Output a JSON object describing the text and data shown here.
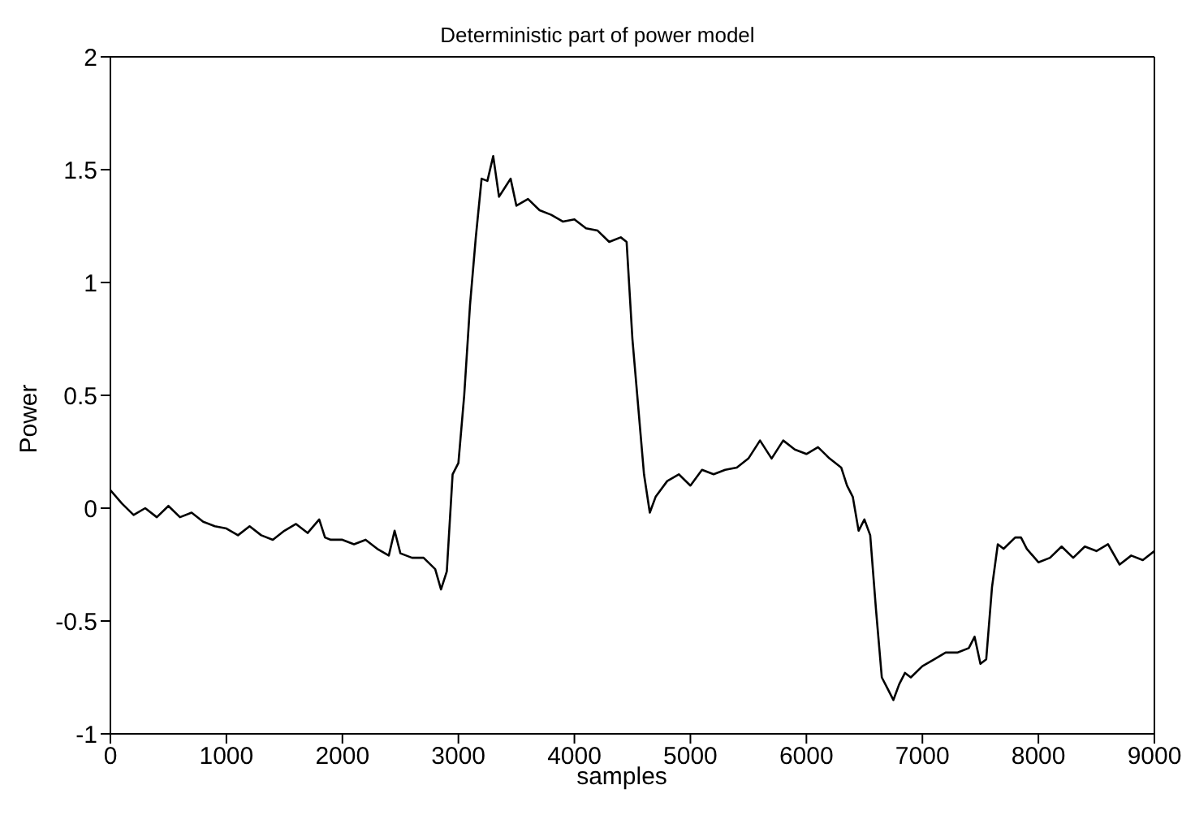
{
  "chart_data": {
    "type": "line",
    "title": "Deterministic part of power model",
    "xlabel": "samples",
    "ylabel": "Power",
    "x": [
      0,
      100,
      200,
      300,
      400,
      500,
      600,
      700,
      800,
      900,
      1000,
      1100,
      1200,
      1300,
      1400,
      1500,
      1600,
      1700,
      1800,
      1850,
      1900,
      2000,
      2100,
      2200,
      2300,
      2400,
      2450,
      2500,
      2600,
      2700,
      2800,
      2850,
      2900,
      2950,
      3000,
      3050,
      3100,
      3150,
      3200,
      3250,
      3300,
      3350,
      3400,
      3450,
      3500,
      3600,
      3700,
      3800,
      3900,
      4000,
      4100,
      4200,
      4300,
      4400,
      4450,
      4500,
      4550,
      4600,
      4650,
      4700,
      4800,
      4900,
      5000,
      5100,
      5200,
      5300,
      5400,
      5500,
      5600,
      5700,
      5800,
      5900,
      6000,
      6100,
      6200,
      6300,
      6350,
      6400,
      6450,
      6500,
      6550,
      6600,
      6650,
      6700,
      6750,
      6800,
      6850,
      6900,
      7000,
      7100,
      7200,
      7300,
      7400,
      7450,
      7500,
      7550,
      7600,
      7650,
      7700,
      7800,
      7850,
      7900,
      8000,
      8100,
      8200,
      8300,
      8400,
      8500,
      8600,
      8700,
      8800,
      8900,
      9000
    ],
    "series": [
      {
        "color": "#000000",
        "values": [
          0.08,
          0.02,
          -0.03,
          0.0,
          -0.04,
          0.01,
          -0.04,
          -0.02,
          -0.06,
          -0.08,
          -0.09,
          -0.12,
          -0.08,
          -0.12,
          -0.14,
          -0.1,
          -0.07,
          -0.11,
          -0.05,
          -0.13,
          -0.14,
          -0.14,
          -0.16,
          -0.14,
          -0.18,
          -0.21,
          -0.1,
          -0.2,
          -0.22,
          -0.22,
          -0.27,
          -0.36,
          -0.28,
          0.15,
          0.2,
          0.5,
          0.9,
          1.2,
          1.46,
          1.45,
          1.56,
          1.38,
          1.42,
          1.46,
          1.34,
          1.37,
          1.32,
          1.3,
          1.27,
          1.28,
          1.24,
          1.23,
          1.18,
          1.2,
          1.18,
          0.75,
          0.45,
          0.15,
          -0.02,
          0.05,
          0.12,
          0.15,
          0.1,
          0.17,
          0.15,
          0.17,
          0.18,
          0.22,
          0.3,
          0.22,
          0.3,
          0.26,
          0.24,
          0.27,
          0.22,
          0.18,
          0.1,
          0.05,
          -0.1,
          -0.05,
          -0.12,
          -0.45,
          -0.75,
          -0.8,
          -0.85,
          -0.78,
          -0.73,
          -0.75,
          -0.7,
          -0.67,
          -0.64,
          -0.64,
          -0.62,
          -0.57,
          -0.69,
          -0.67,
          -0.35,
          -0.16,
          -0.18,
          -0.13,
          -0.13,
          -0.18,
          -0.24,
          -0.22,
          -0.17,
          -0.22,
          -0.17,
          -0.19,
          -0.16,
          -0.25,
          -0.21,
          -0.23,
          -0.19
        ]
      }
    ],
    "xlim": [
      0,
      9000
    ],
    "xticks": [
      0,
      1000,
      2000,
      3000,
      4000,
      5000,
      6000,
      7000,
      8000,
      9000
    ],
    "ylim": [
      -1,
      2
    ],
    "yticks": [
      -1,
      -0.5,
      0,
      0.5,
      1,
      1.5,
      2
    ],
    "marker": "none",
    "line_style": "solid"
  }
}
